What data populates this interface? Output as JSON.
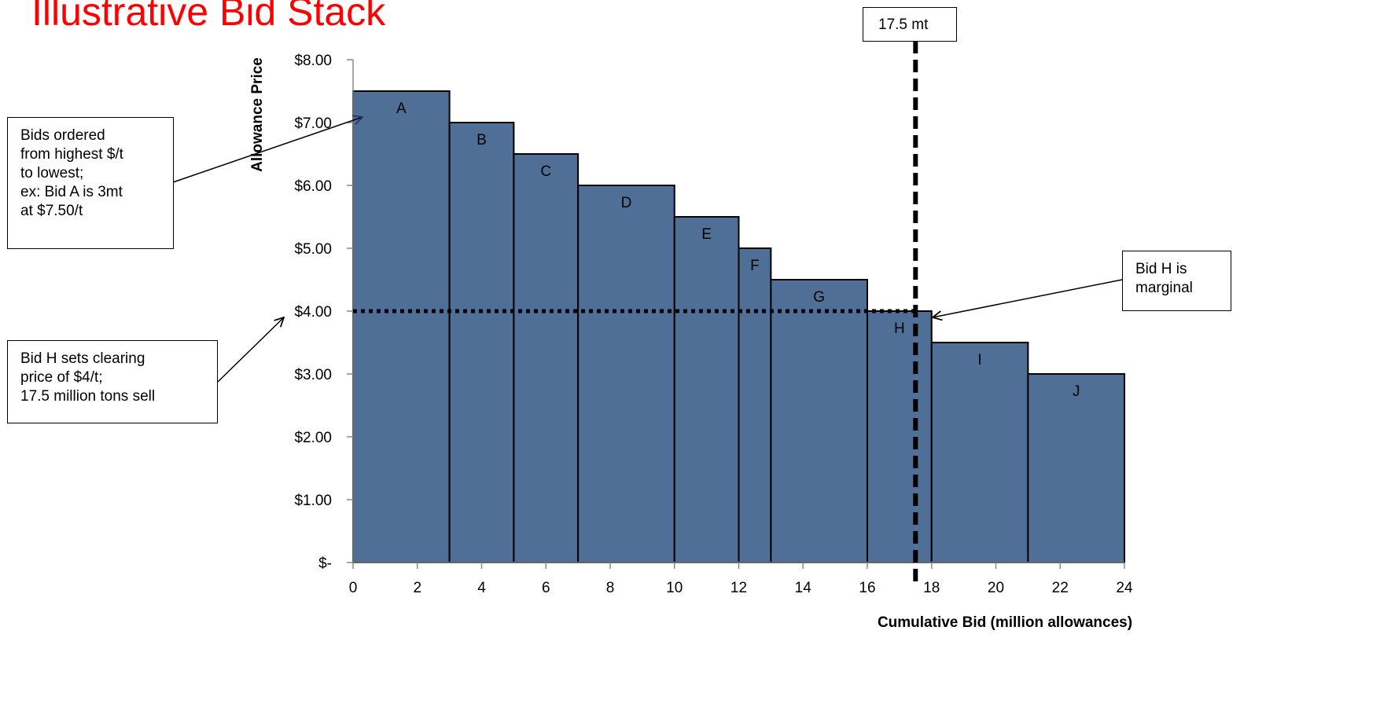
{
  "page_title": "Illustrative Bid Stack",
  "callouts": {
    "bids_ordered": [
      "Bids ordered",
      "from highest $/t",
      "to lowest;",
      "ex: Bid A is 3mt",
      "at $7.50/t"
    ],
    "clearing_price": [
      "Bid H sets clearing",
      "price of $4/t;",
      "17.5 million tons sell"
    ],
    "marginal": [
      "Bid H is",
      "marginal"
    ],
    "volume": "17.5 mt"
  },
  "chart_data": {
    "type": "bar",
    "title": "Illustrative Bid Stack",
    "xlabel": "Cumulative Bid (million allowances)",
    "ylabel": "Allowance Price",
    "xlim": [
      0,
      24
    ],
    "ylim": [
      0,
      8
    ],
    "x_ticks": [
      0,
      2,
      4,
      6,
      8,
      10,
      12,
      14,
      16,
      18,
      20,
      22,
      24
    ],
    "y_ticks": [
      0,
      1,
      2,
      3,
      4,
      5,
      6,
      7,
      8
    ],
    "y_tick_labels": [
      "$-",
      "$1.00",
      "$2.00",
      "$3.00",
      "$4.00",
      "$5.00",
      "$6.00",
      "$7.00",
      "$8.00"
    ],
    "bar_color": "#4f6f96",
    "bids": [
      {
        "label": "A",
        "start": 0,
        "end": 3,
        "price": 7.5
      },
      {
        "label": "B",
        "start": 3,
        "end": 5,
        "price": 7.0
      },
      {
        "label": "C",
        "start": 5,
        "end": 7,
        "price": 6.5
      },
      {
        "label": "D",
        "start": 7,
        "end": 10,
        "price": 6.0
      },
      {
        "label": "E",
        "start": 10,
        "end": 12,
        "price": 5.5
      },
      {
        "label": "F",
        "start": 12,
        "end": 13,
        "price": 5.0
      },
      {
        "label": "G",
        "start": 13,
        "end": 16,
        "price": 4.5
      },
      {
        "label": "H",
        "start": 16,
        "end": 18,
        "price": 4.0
      },
      {
        "label": "I",
        "start": 18,
        "end": 21,
        "price": 3.5
      },
      {
        "label": "J",
        "start": 21,
        "end": 24,
        "price": 3.0
      }
    ],
    "clearing_price": 4.0,
    "clearing_volume": 17.5,
    "grid": false,
    "legend": "none"
  }
}
